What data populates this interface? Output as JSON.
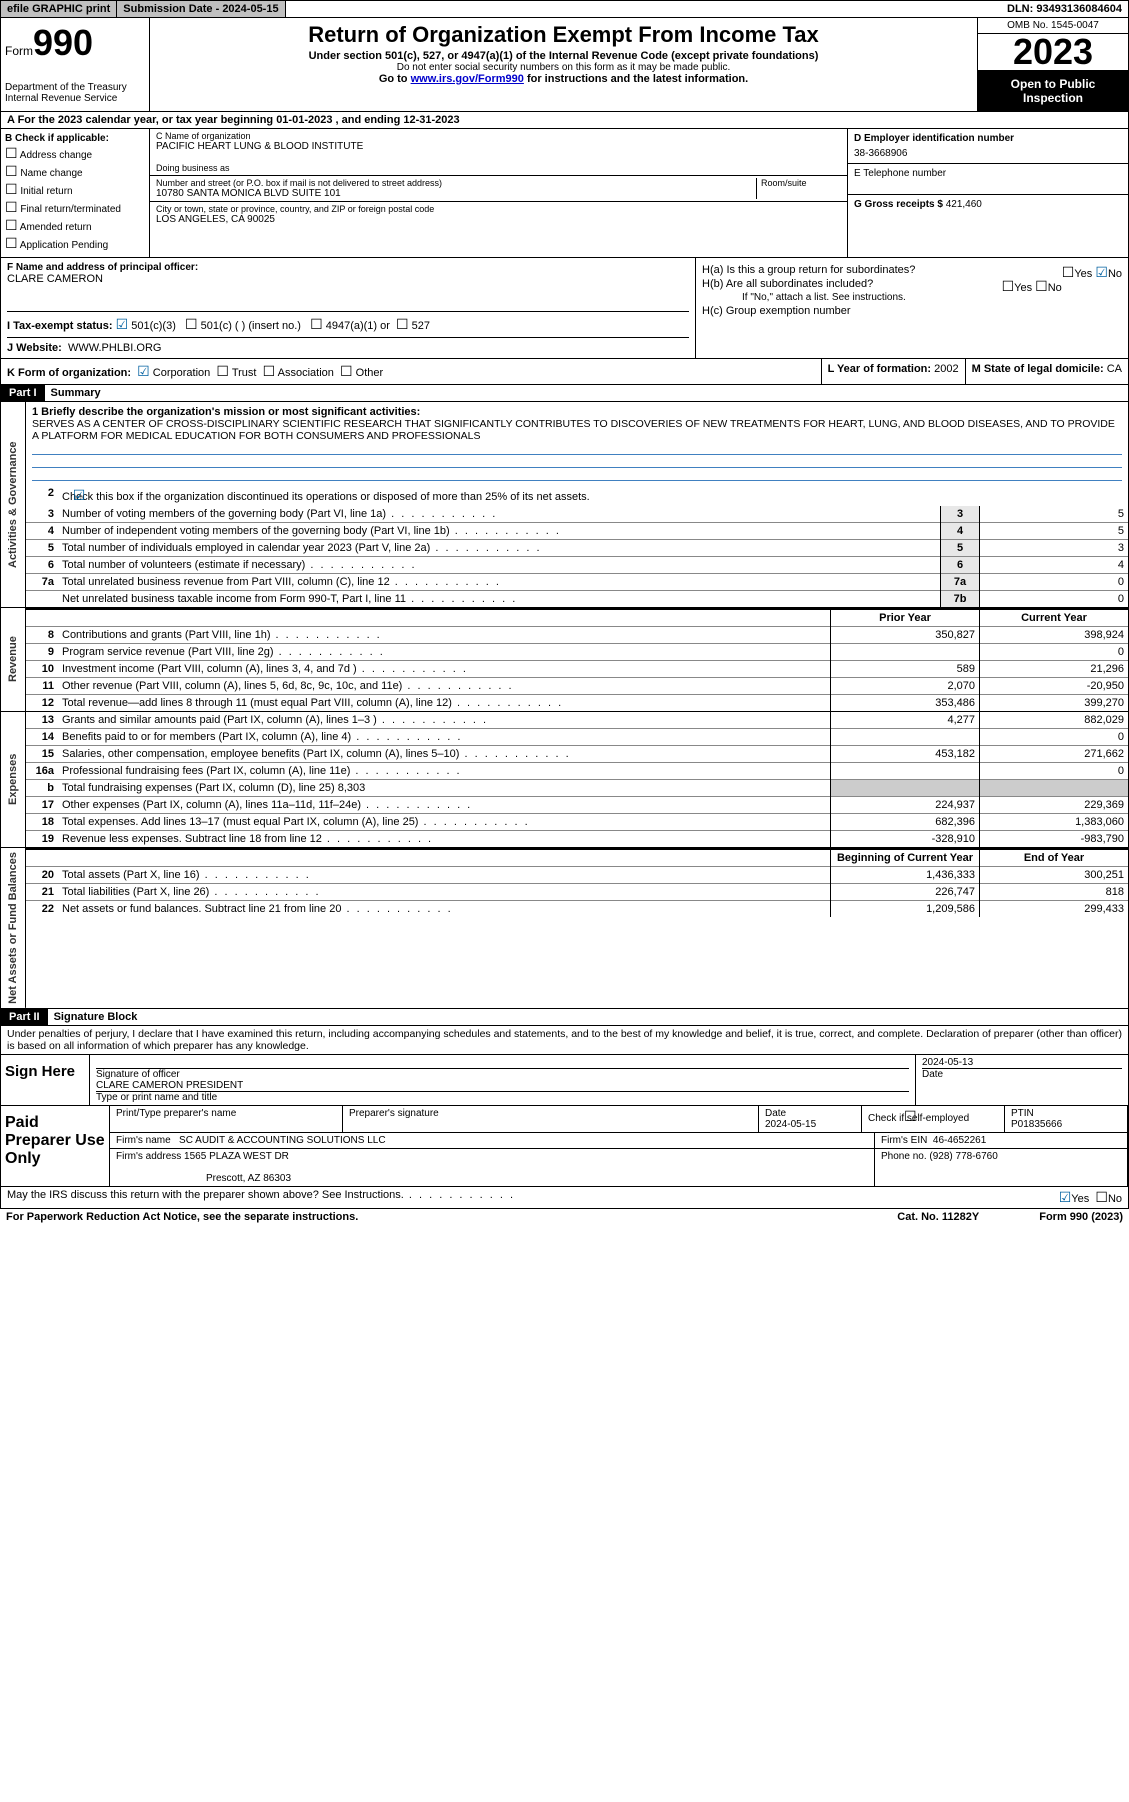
{
  "topbar": {
    "efile": "efile GRAPHIC print",
    "submission": "Submission Date - 2024-05-15",
    "dln": "DLN: 93493136084604"
  },
  "header": {
    "form_label": "Form",
    "form_num": "990",
    "dept": "Department of the Treasury",
    "irs": "Internal Revenue Service",
    "title": "Return of Organization Exempt From Income Tax",
    "sub1": "Under section 501(c), 527, or 4947(a)(1) of the Internal Revenue Code (except private foundations)",
    "sub2": "Do not enter social security numbers on this form as it may be made public.",
    "sub3_pre": "Go to ",
    "sub3_link": "www.irs.gov/Form990",
    "sub3_post": " for instructions and the latest information.",
    "omb": "OMB No. 1545-0047",
    "year": "2023",
    "open": "Open to Public Inspection"
  },
  "row_a": "A For the 2023 calendar year, or tax year beginning 01-01-2023   , and ending 12-31-2023",
  "col_b": {
    "title": "B Check if applicable:",
    "opts": [
      "Address change",
      "Name change",
      "Initial return",
      "Final return/terminated",
      "Amended return",
      "Application Pending"
    ]
  },
  "col_c": {
    "name_label": "C Name of organization",
    "name": "PACIFIC HEART LUNG & BLOOD INSTITUTE",
    "dba_label": "Doing business as",
    "addr_label": "Number and street (or P.O. box if mail is not delivered to street address)",
    "room_label": "Room/suite",
    "addr": "10780 SANTA MONICA BLVD SUITE 101",
    "city_label": "City or town, state or province, country, and ZIP or foreign postal code",
    "city": "LOS ANGELES, CA  90025"
  },
  "col_d": {
    "ein_label": "D Employer identification number",
    "ein": "38-3668906",
    "tel_label": "E Telephone number",
    "gross_label": "G Gross receipts $",
    "gross": "421,460"
  },
  "col_f": {
    "label": "F Name and address of principal officer:",
    "name": "CLARE CAMERON"
  },
  "col_h": {
    "a": "H(a)  Is this a group return for subordinates?",
    "b": "H(b)  Are all subordinates included?",
    "note": "If \"No,\" attach a list. See instructions.",
    "c": "H(c)  Group exemption number",
    "yes": "Yes",
    "no": "No"
  },
  "row_i": {
    "label": "I   Tax-exempt status:",
    "o1": "501(c)(3)",
    "o2": "501(c) (  ) (insert no.)",
    "o3": "4947(a)(1) or",
    "o4": "527"
  },
  "row_j": {
    "label": "J   Website:",
    "val": "WWW.PHLBI.ORG"
  },
  "row_k": {
    "label": "K Form of organization:",
    "o1": "Corporation",
    "o2": "Trust",
    "o3": "Association",
    "o4": "Other",
    "l_label": "L Year of formation:",
    "l_val": "2002",
    "m_label": "M State of legal domicile:",
    "m_val": "CA"
  },
  "part1": {
    "header": "Part I",
    "title": "Summary",
    "l1_label": "1  Briefly describe the organization's mission or most significant activities:",
    "l1_text": "SERVES AS A CENTER OF CROSS-DISCIPLINARY SCIENTIFIC RESEARCH THAT SIGNIFICANTLY CONTRIBUTES TO DISCOVERIES OF NEW TREATMENTS FOR HEART, LUNG, AND BLOOD DISEASES, AND TO PROVIDE A PLATFORM FOR MEDICAL EDUCATION FOR BOTH CONSUMERS AND PROFESSIONALS",
    "l2": "Check this box       if the organization discontinued its operations or disposed of more than 25% of its net assets.",
    "sections": {
      "gov": "Activities & Governance",
      "rev": "Revenue",
      "exp": "Expenses",
      "net": "Net Assets or Fund Balances"
    },
    "prior": "Prior Year",
    "current": "Current Year",
    "begin": "Beginning of Current Year",
    "end": "End of Year",
    "lines_gov": [
      {
        "n": "3",
        "t": "Number of voting members of the governing body (Part VI, line 1a)",
        "box": "3",
        "v": "5"
      },
      {
        "n": "4",
        "t": "Number of independent voting members of the governing body (Part VI, line 1b)",
        "box": "4",
        "v": "5"
      },
      {
        "n": "5",
        "t": "Total number of individuals employed in calendar year 2023 (Part V, line 2a)",
        "box": "5",
        "v": "3"
      },
      {
        "n": "6",
        "t": "Total number of volunteers (estimate if necessary)",
        "box": "6",
        "v": "4"
      },
      {
        "n": "7a",
        "t": "Total unrelated business revenue from Part VIII, column (C), line 12",
        "box": "7a",
        "v": "0"
      },
      {
        "n": "",
        "t": "Net unrelated business taxable income from Form 990-T, Part I, line 11",
        "box": "7b",
        "v": "0"
      }
    ],
    "lines_rev": [
      {
        "n": "8",
        "t": "Contributions and grants (Part VIII, line 1h)",
        "p": "350,827",
        "c": "398,924"
      },
      {
        "n": "9",
        "t": "Program service revenue (Part VIII, line 2g)",
        "p": "",
        "c": "0"
      },
      {
        "n": "10",
        "t": "Investment income (Part VIII, column (A), lines 3, 4, and 7d )",
        "p": "589",
        "c": "21,296"
      },
      {
        "n": "11",
        "t": "Other revenue (Part VIII, column (A), lines 5, 6d, 8c, 9c, 10c, and 11e)",
        "p": "2,070",
        "c": "-20,950"
      },
      {
        "n": "12",
        "t": "Total revenue—add lines 8 through 11 (must equal Part VIII, column (A), line 12)",
        "p": "353,486",
        "c": "399,270"
      }
    ],
    "lines_exp": [
      {
        "n": "13",
        "t": "Grants and similar amounts paid (Part IX, column (A), lines 1–3 )",
        "p": "4,277",
        "c": "882,029"
      },
      {
        "n": "14",
        "t": "Benefits paid to or for members (Part IX, column (A), line 4)",
        "p": "",
        "c": "0"
      },
      {
        "n": "15",
        "t": "Salaries, other compensation, employee benefits (Part IX, column (A), lines 5–10)",
        "p": "453,182",
        "c": "271,662"
      },
      {
        "n": "16a",
        "t": "Professional fundraising fees (Part IX, column (A), line 11e)",
        "p": "",
        "c": "0"
      },
      {
        "n": "b",
        "t": "Total fundraising expenses (Part IX, column (D), line 25) 8,303",
        "p": "",
        "c": "",
        "noval": true
      },
      {
        "n": "17",
        "t": "Other expenses (Part IX, column (A), lines 11a–11d, 11f–24e)",
        "p": "224,937",
        "c": "229,369"
      },
      {
        "n": "18",
        "t": "Total expenses. Add lines 13–17 (must equal Part IX, column (A), line 25)",
        "p": "682,396",
        "c": "1,383,060"
      },
      {
        "n": "19",
        "t": "Revenue less expenses. Subtract line 18 from line 12",
        "p": "-328,910",
        "c": "-983,790"
      }
    ],
    "lines_net": [
      {
        "n": "20",
        "t": "Total assets (Part X, line 16)",
        "p": "1,436,333",
        "c": "300,251"
      },
      {
        "n": "21",
        "t": "Total liabilities (Part X, line 26)",
        "p": "226,747",
        "c": "818"
      },
      {
        "n": "22",
        "t": "Net assets or fund balances. Subtract line 21 from line 20",
        "p": "1,209,586",
        "c": "299,433"
      }
    ]
  },
  "part2": {
    "header": "Part II",
    "title": "Signature Block",
    "decl": "Under penalties of perjury, I declare that I have examined this return, including accompanying schedules and statements, and to the best of my knowledge and belief, it is true, correct, and complete. Declaration of preparer (other than officer) is based on all information of which preparer has any knowledge.",
    "sign_here": "Sign Here",
    "sig_officer": "Signature of officer",
    "sig_name": "CLARE CAMERON PRESIDENT",
    "sig_type": "Type or print name and title",
    "date_label": "Date",
    "date_val": "2024-05-13",
    "paid": "Paid Preparer Use Only",
    "prep_name_label": "Print/Type preparer's name",
    "prep_sig_label": "Preparer's signature",
    "prep_date": "2024-05-15",
    "check_self": "Check        if self-employed",
    "ptin_label": "PTIN",
    "ptin": "P01835666",
    "firm_name_label": "Firm's name",
    "firm_name": "SC AUDIT & ACCOUNTING SOLUTIONS LLC",
    "firm_ein_label": "Firm's EIN",
    "firm_ein": "46-4652261",
    "firm_addr_label": "Firm's address",
    "firm_addr1": "1565 PLAZA WEST DR",
    "firm_addr2": "Prescott, AZ  86303",
    "phone_label": "Phone no.",
    "phone": "(928) 778-6760",
    "discuss": "May the IRS discuss this return with the preparer shown above? See Instructions.",
    "yes": "Yes",
    "no": "No"
  },
  "footer": {
    "paperwork": "For Paperwork Reduction Act Notice, see the separate instructions.",
    "cat": "Cat. No. 11282Y",
    "form": "Form 990 (2023)"
  }
}
